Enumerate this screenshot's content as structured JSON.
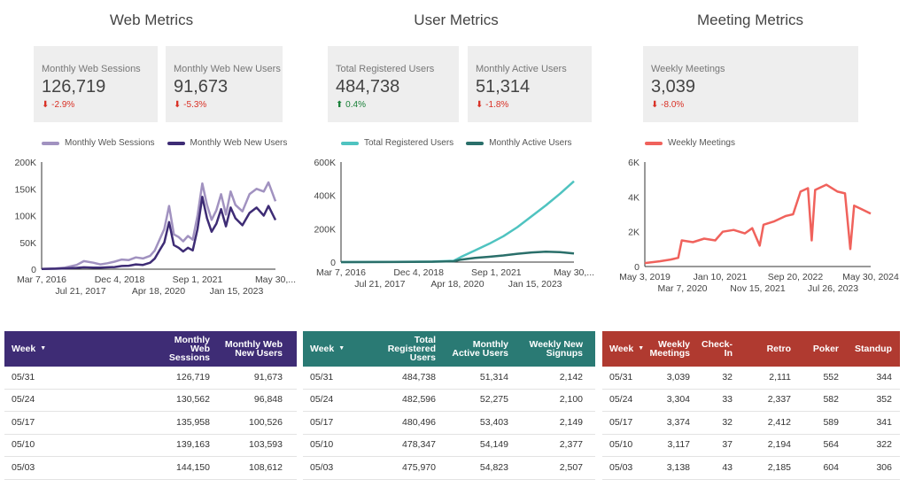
{
  "sections": [
    {
      "title": "Web Metrics",
      "kpis": [
        {
          "label": "Monthly Web Sessions",
          "value": "126,719",
          "delta": "-2.9%",
          "dir": "down"
        },
        {
          "label": "Monthly Web New Users",
          "value": "91,673",
          "delta": "-5.3%",
          "dir": "down"
        }
      ]
    },
    {
      "title": "User Metrics",
      "kpis": [
        {
          "label": "Total Registered Users",
          "value": "484,738",
          "delta": "0.4%",
          "dir": "up"
        },
        {
          "label": "Monthly Active Users",
          "value": "51,314",
          "delta": "-1.8%",
          "dir": "down"
        }
      ]
    },
    {
      "title": "Meeting Metrics",
      "kpis": [
        {
          "label": "Weekly Meetings",
          "value": "3,039",
          "delta": "-8.0%",
          "dir": "down"
        }
      ]
    }
  ],
  "arrows": {
    "down": "⬇",
    "up": "⬆"
  },
  "chart_data": [
    {
      "type": "line",
      "legend_position": "top",
      "grid": false,
      "ylim": [
        0,
        200000
      ],
      "y_ticks": [
        "0",
        "50K",
        "100K",
        "150K",
        "200K"
      ],
      "y_tick_values": [
        0,
        50000,
        100000,
        150000,
        200000
      ],
      "x_ticks_row1": [
        "Mar 7, 2016",
        "Dec 4, 2018",
        "Sep 1, 2021",
        "May 30,..."
      ],
      "x_ticks_row2": [
        "Jul 21, 2017",
        "Apr 18, 2020",
        "Jan 15, 2023"
      ],
      "x_range": [
        "2016-03-07",
        "2024-05-30"
      ],
      "series": [
        {
          "name": "Monthly Web Sessions",
          "color": "#a192c0",
          "points": [
            [
              "2016-03-07",
              500
            ],
            [
              "2016-09-01",
              1500
            ],
            [
              "2017-01-01",
              3000
            ],
            [
              "2017-06-01",
              8000
            ],
            [
              "2017-09-01",
              15000
            ],
            [
              "2018-01-01",
              12000
            ],
            [
              "2018-04-01",
              9000
            ],
            [
              "2018-07-01",
              11000
            ],
            [
              "2018-10-01",
              14000
            ],
            [
              "2019-01-01",
              18000
            ],
            [
              "2019-04-01",
              17000
            ],
            [
              "2019-07-01",
              22000
            ],
            [
              "2019-10-01",
              20000
            ],
            [
              "2020-01-01",
              25000
            ],
            [
              "2020-03-01",
              35000
            ],
            [
              "2020-05-01",
              55000
            ],
            [
              "2020-07-01",
              75000
            ],
            [
              "2020-09-01",
              118000
            ],
            [
              "2020-11-01",
              65000
            ],
            [
              "2021-01-01",
              60000
            ],
            [
              "2021-03-01",
              52000
            ],
            [
              "2021-05-01",
              62000
            ],
            [
              "2021-07-01",
              55000
            ],
            [
              "2021-09-01",
              100000
            ],
            [
              "2021-11-01",
              160000
            ],
            [
              "2022-01-01",
              120000
            ],
            [
              "2022-03-01",
              92000
            ],
            [
              "2022-05-01",
              110000
            ],
            [
              "2022-07-01",
              140000
            ],
            [
              "2022-09-01",
              102000
            ],
            [
              "2022-11-01",
              145000
            ],
            [
              "2023-01-01",
              120000
            ],
            [
              "2023-04-01",
              108000
            ],
            [
              "2023-07-01",
              140000
            ],
            [
              "2023-10-01",
              150000
            ],
            [
              "2024-01-01",
              145000
            ],
            [
              "2024-03-01",
              162000
            ],
            [
              "2024-05-30",
              126719
            ]
          ]
        },
        {
          "name": "Monthly Web New Users",
          "color": "#3e2c75",
          "points": [
            [
              "2016-03-07",
              300
            ],
            [
              "2016-09-01",
              800
            ],
            [
              "2017-01-01",
              1500
            ],
            [
              "2017-06-01",
              2500
            ],
            [
              "2017-09-01",
              3500
            ],
            [
              "2018-01-01",
              3000
            ],
            [
              "2018-04-01",
              2800
            ],
            [
              "2018-07-01",
              3500
            ],
            [
              "2018-10-01",
              4000
            ],
            [
              "2019-01-01",
              6000
            ],
            [
              "2019-04-01",
              6500
            ],
            [
              "2019-07-01",
              9000
            ],
            [
              "2019-10-01",
              8000
            ],
            [
              "2020-01-01",
              12000
            ],
            [
              "2020-03-01",
              20000
            ],
            [
              "2020-05-01",
              35000
            ],
            [
              "2020-07-01",
              50000
            ],
            [
              "2020-09-01",
              88000
            ],
            [
              "2020-11-01",
              45000
            ],
            [
              "2021-01-01",
              40000
            ],
            [
              "2021-03-01",
              33000
            ],
            [
              "2021-05-01",
              40000
            ],
            [
              "2021-07-01",
              35000
            ],
            [
              "2021-09-01",
              75000
            ],
            [
              "2021-11-01",
              135000
            ],
            [
              "2022-01-01",
              95000
            ],
            [
              "2022-03-01",
              70000
            ],
            [
              "2022-05-01",
              85000
            ],
            [
              "2022-07-01",
              112000
            ],
            [
              "2022-09-01",
              80000
            ],
            [
              "2022-11-01",
              115000
            ],
            [
              "2023-01-01",
              95000
            ],
            [
              "2023-04-01",
              82000
            ],
            [
              "2023-07-01",
              105000
            ],
            [
              "2023-10-01",
              115000
            ],
            [
              "2024-01-01",
              100000
            ],
            [
              "2024-03-01",
              118000
            ],
            [
              "2024-05-30",
              91673
            ]
          ]
        }
      ]
    },
    {
      "type": "line",
      "legend_position": "top",
      "grid": false,
      "ylim": [
        0,
        600000
      ],
      "y_ticks": [
        "0",
        "200K",
        "400K",
        "600K"
      ],
      "y_tick_values": [
        0,
        200000,
        400000,
        600000
      ],
      "x_ticks_row1": [
        "Mar 7, 2016",
        "Dec 4, 2018",
        "Sep 1, 2021",
        "May 30,..."
      ],
      "x_ticks_row2": [
        "Jul 21, 2017",
        "Apr 18, 2020",
        "Jan 15, 2023"
      ],
      "x_range": [
        "2016-03-07",
        "2024-05-30"
      ],
      "series": [
        {
          "name": "Total Registered Users",
          "color": "#4fc3c0",
          "points": [
            [
              "2016-03-07",
              0
            ],
            [
              "2018-01-01",
              1000
            ],
            [
              "2019-06-01",
              3000
            ],
            [
              "2020-03-01",
              8000
            ],
            [
              "2020-06-01",
              30000
            ],
            [
              "2020-12-01",
              70000
            ],
            [
              "2021-06-01",
              110000
            ],
            [
              "2021-12-01",
              155000
            ],
            [
              "2022-06-01",
              210000
            ],
            [
              "2022-12-01",
              275000
            ],
            [
              "2023-06-01",
              340000
            ],
            [
              "2023-12-01",
              410000
            ],
            [
              "2024-05-30",
              484738
            ]
          ]
        },
        {
          "name": "Monthly Active Users",
          "color": "#2a6f6a",
          "points": [
            [
              "2016-03-07",
              0
            ],
            [
              "2018-01-01",
              500
            ],
            [
              "2019-06-01",
              2000
            ],
            [
              "2020-03-01",
              5000
            ],
            [
              "2020-06-01",
              15000
            ],
            [
              "2020-12-01",
              25000
            ],
            [
              "2021-06-01",
              32000
            ],
            [
              "2021-12-01",
              40000
            ],
            [
              "2022-06-01",
              50000
            ],
            [
              "2022-12-01",
              58000
            ],
            [
              "2023-06-01",
              62000
            ],
            [
              "2023-12-01",
              60000
            ],
            [
              "2024-03-01",
              56000
            ],
            [
              "2024-05-30",
              51314
            ]
          ]
        }
      ]
    },
    {
      "type": "line",
      "legend_position": "top",
      "grid": false,
      "ylim": [
        0,
        6000
      ],
      "y_ticks": [
        "0",
        "2K",
        "4K",
        "6K"
      ],
      "y_tick_values": [
        0,
        2000,
        4000,
        6000
      ],
      "x_ticks_row1": [
        "May 3, 2019",
        "Jan 10, 2021",
        "Sep 20, 2022",
        "May 30, 2024"
      ],
      "x_ticks_row2": [
        "Mar 7, 2020",
        "Nov 15, 2021",
        "Jul 26, 2023"
      ],
      "x_range": [
        "2019-05-03",
        "2024-05-30"
      ],
      "series": [
        {
          "name": "Weekly Meetings",
          "color": "#f0625c",
          "points": [
            [
              "2019-05-03",
              200
            ],
            [
              "2019-09-01",
              300
            ],
            [
              "2019-12-01",
              400
            ],
            [
              "2020-02-01",
              500
            ],
            [
              "2020-03-01",
              1500
            ],
            [
              "2020-06-01",
              1400
            ],
            [
              "2020-09-01",
              1600
            ],
            [
              "2020-12-01",
              1500
            ],
            [
              "2021-02-01",
              2000
            ],
            [
              "2021-05-01",
              2100
            ],
            [
              "2021-08-01",
              1900
            ],
            [
              "2021-10-01",
              2200
            ],
            [
              "2021-12-01",
              1200
            ],
            [
              "2022-01-01",
              2400
            ],
            [
              "2022-04-01",
              2600
            ],
            [
              "2022-07-01",
              2900
            ],
            [
              "2022-09-01",
              3000
            ],
            [
              "2022-11-01",
              4300
            ],
            [
              "2023-01-01",
              4500
            ],
            [
              "2023-02-01",
              1500
            ],
            [
              "2023-03-01",
              4400
            ],
            [
              "2023-06-01",
              4700
            ],
            [
              "2023-09-01",
              4300
            ],
            [
              "2023-11-01",
              4200
            ],
            [
              "2023-12-15",
              1000
            ],
            [
              "2024-01-15",
              3500
            ],
            [
              "2024-03-15",
              3300
            ],
            [
              "2024-05-30",
              3039
            ]
          ]
        }
      ]
    }
  ],
  "tables": [
    {
      "header_color": "#3e2c75",
      "columns": [
        {
          "label": "Week",
          "width": 178,
          "first": true,
          "sort": true
        },
        {
          "label": "Monthly Web Sessions",
          "width": 62
        },
        {
          "label": "Monthly Web New Users",
          "width": 82
        }
      ],
      "rows": [
        [
          "05/31",
          "126,719",
          "91,673"
        ],
        [
          "05/24",
          "130,562",
          "96,848"
        ],
        [
          "05/17",
          "135,958",
          "100,526"
        ],
        [
          "05/10",
          "139,163",
          "103,593"
        ],
        [
          "05/03",
          "144,150",
          "108,612"
        ]
      ]
    },
    {
      "header_color": "#2a7a74",
      "columns": [
        {
          "label": "Week",
          "width": 84,
          "first": true,
          "sort": true
        },
        {
          "label": "Total Registered Users",
          "width": 74
        },
        {
          "label": "Monthly Active Users",
          "width": 82
        },
        {
          "label": "Weekly New Signups",
          "width": 84
        }
      ],
      "rows": [
        [
          "05/31",
          "484,738",
          "51,314",
          "2,142"
        ],
        [
          "05/24",
          "482,596",
          "52,275",
          "2,100"
        ],
        [
          "05/17",
          "480,496",
          "53,403",
          "2,149"
        ],
        [
          "05/10",
          "478,347",
          "54,149",
          "2,377"
        ],
        [
          "05/03",
          "475,970",
          "54,823",
          "2,507"
        ]
      ]
    },
    {
      "header_color": "#b03a30",
      "columns": [
        {
          "label": "Week",
          "width": 52,
          "first": true,
          "sort": true
        },
        {
          "label": "Weekly Meetings",
          "width": 55
        },
        {
          "label": "Check-In",
          "width": 48
        },
        {
          "label": "Retro",
          "width": 66
        },
        {
          "label": "Poker",
          "width": 54
        },
        {
          "label": "Standup",
          "width": 60
        }
      ],
      "rows": [
        [
          "05/31",
          "3,039",
          "32",
          "2,111",
          "552",
          "344"
        ],
        [
          "05/24",
          "3,304",
          "33",
          "2,337",
          "582",
          "352"
        ],
        [
          "05/17",
          "3,374",
          "32",
          "2,412",
          "589",
          "341"
        ],
        [
          "05/10",
          "3,117",
          "37",
          "2,194",
          "564",
          "322"
        ],
        [
          "05/03",
          "3,138",
          "43",
          "2,185",
          "604",
          "306"
        ]
      ]
    }
  ]
}
